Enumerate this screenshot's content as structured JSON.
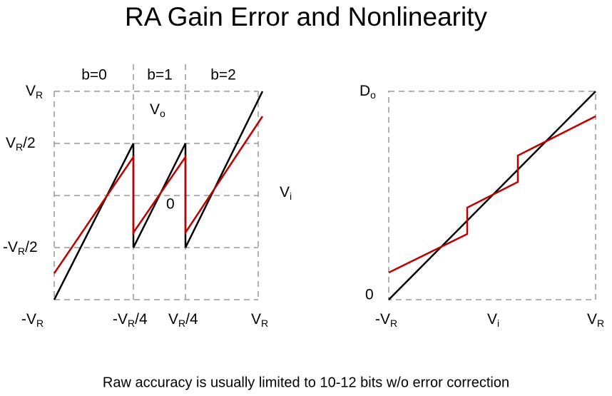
{
  "title": "RA Gain Error and Nonlinearity",
  "footer": "Raw accuracy is usually limited to 10-12 bits w/o error correction",
  "left": {
    "regions": [
      "b=0",
      "b=1",
      "b=2"
    ],
    "y_labels": [
      {
        "base": "V",
        "sub": "R"
      },
      {
        "base": "V",
        "sub": "R",
        "rest": "/2"
      },
      {
        "base": "-V",
        "sub": "R",
        "rest": "/2"
      }
    ],
    "x_labels": [
      {
        "base": "-V",
        "sub": "R"
      },
      {
        "base": "-V",
        "sub": "R",
        "rest": "/4"
      },
      {
        "base": "V",
        "sub": "R",
        "rest": "/4"
      },
      {
        "base": "V",
        "sub": "R"
      }
    ],
    "output": {
      "base": "V",
      "sub": "o"
    },
    "zero": "0",
    "input": {
      "base": "V",
      "sub": "i"
    }
  },
  "right": {
    "y_label": {
      "base": "D",
      "sub": "o"
    },
    "zero": "0",
    "x_labels": [
      {
        "base": "-V",
        "sub": "R"
      },
      {
        "base": "V",
        "sub": "i"
      },
      {
        "base": "V",
        "sub": "R"
      }
    ]
  }
}
